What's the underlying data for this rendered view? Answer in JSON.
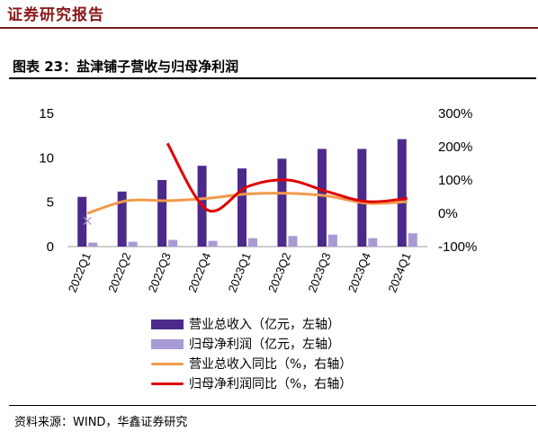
{
  "header": {
    "title": "证券研究报告"
  },
  "figure": {
    "title": "图表 23：盐津铺子营收与归母净利润"
  },
  "source": "资料来源：WIND，华鑫证券研究",
  "colors": {
    "revenue": "#4b2a8c",
    "profit": "#a99ad6",
    "revenue_yoy": "#f29a4a",
    "profit_yoy": "#e00000",
    "brand": "#8a1a1a"
  },
  "legend": [
    {
      "label": "营业总收入（亿元，左轴）",
      "kind": "bar",
      "color_key": "revenue"
    },
    {
      "label": "归母净利润（亿元，左轴）",
      "kind": "bar",
      "color_key": "profit"
    },
    {
      "label": "营业总收入同比（%，右轴）",
      "kind": "line",
      "color_key": "revenue_yoy"
    },
    {
      "label": "归母净利润同比（%，右轴）",
      "kind": "line",
      "color_key": "profit_yoy"
    }
  ],
  "chart_data": {
    "type": "bar",
    "categories": [
      "2022Q1",
      "2022Q2",
      "2022Q3",
      "2022Q4",
      "2023Q1",
      "2023Q2",
      "2023Q3",
      "2023Q4",
      "2024Q1"
    ],
    "left_axis": {
      "ylim": [
        0,
        15
      ],
      "ticks": [
        0,
        5,
        10,
        15
      ],
      "tick_labels": [
        "0",
        "5",
        "10",
        "15"
      ]
    },
    "right_axis": {
      "ylim": [
        -100,
        300
      ],
      "ticks": [
        -100,
        0,
        100,
        200,
        300
      ],
      "tick_labels": [
        "-100%",
        "0%",
        "100%",
        "200%",
        "300%"
      ]
    },
    "series": [
      {
        "name": "营业总收入（亿元，左轴）",
        "kind": "bar",
        "axis": "left",
        "values": [
          5.6,
          6.2,
          7.5,
          9.1,
          8.8,
          9.9,
          11.0,
          11.0,
          12.1
        ]
      },
      {
        "name": "归母净利润（亿元，左轴）",
        "kind": "bar",
        "axis": "left",
        "values": [
          0.45,
          0.55,
          0.75,
          0.65,
          0.95,
          1.2,
          1.35,
          0.95,
          1.5
        ]
      },
      {
        "name": "营业总收入同比（%，右轴）",
        "kind": "line",
        "axis": "right",
        "values": [
          0,
          38,
          38,
          45,
          58,
          60,
          52,
          30,
          35
        ]
      },
      {
        "name": "归母净利润同比（%，右轴）",
        "kind": "line",
        "axis": "right",
        "values": [
          null,
          null,
          210,
          10,
          80,
          100,
          65,
          35,
          45
        ]
      }
    ],
    "markers": [
      {
        "category": "2022Q1",
        "value": -20,
        "axis": "right",
        "symbol": "×",
        "color_key": "profit"
      }
    ]
  }
}
